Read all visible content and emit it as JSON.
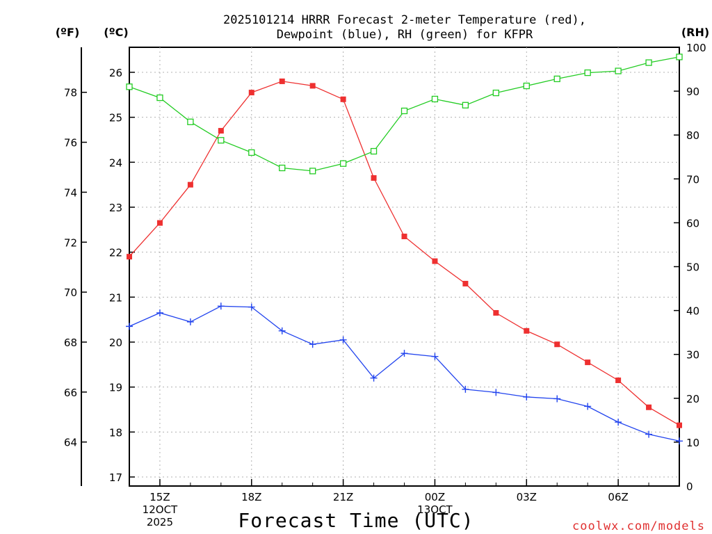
{
  "title_lines": [
    "2025101214 HRRR Forecast 2-meter Temperature (red),",
    "Dewpoint (blue), RH (green) for KFPR"
  ],
  "credit": "coolwx.com/models",
  "chart_data": {
    "type": "line",
    "title": "2025101214 HRRR Forecast 2-meter Temperature (red), Dewpoint (blue), RH (green) for KFPR",
    "xlabel": "Forecast Time (UTC)",
    "hour_range": [
      14,
      32
    ],
    "x_ticks": [
      {
        "hour": 15,
        "lines": [
          "15Z",
          "12OCT",
          "2025"
        ]
      },
      {
        "hour": 18,
        "lines": [
          "18Z"
        ]
      },
      {
        "hour": 21,
        "lines": [
          "21Z"
        ]
      },
      {
        "hour": 24,
        "lines": [
          "00Z",
          "13OCT"
        ]
      },
      {
        "hour": 27,
        "lines": [
          "03Z"
        ]
      },
      {
        "hour": 30,
        "lines": [
          "06Z"
        ]
      }
    ],
    "celsius_axis": {
      "label": "(ºC)",
      "ticks": [
        17,
        18,
        19,
        20,
        21,
        22,
        23,
        24,
        25,
        26
      ],
      "range": [
        16.8,
        26.55
      ]
    },
    "fahrenheit_axis": {
      "label": "(ºF)",
      "ticks": [
        64,
        66,
        68,
        70,
        72,
        74,
        76,
        78
      ]
    },
    "rh_axis": {
      "label": "(RH)",
      "ticks": [
        0,
        10,
        20,
        30,
        40,
        50,
        60,
        70,
        80,
        90,
        100
      ],
      "range": [
        0,
        100
      ]
    },
    "series": [
      {
        "name": "Temperature",
        "color": "#ee3030",
        "marker": "filled-square",
        "axis": "celsius",
        "hours": [
          14,
          15,
          16,
          17,
          18,
          19,
          20,
          21,
          22,
          23,
          24,
          25,
          26,
          27,
          28,
          29,
          30,
          31,
          32
        ],
        "values": [
          21.9,
          22.65,
          23.5,
          24.7,
          25.55,
          25.8,
          25.7,
          25.4,
          23.65,
          22.35,
          21.8,
          21.3,
          20.65,
          20.25,
          19.95,
          19.55,
          19.15,
          18.55,
          18.15
        ]
      },
      {
        "name": "Dewpoint",
        "color": "#2244ee",
        "marker": "plus",
        "axis": "celsius",
        "hours": [
          14,
          15,
          16,
          17,
          18,
          19,
          20,
          21,
          22,
          23,
          24,
          25,
          26,
          27,
          28,
          29,
          30,
          31,
          32
        ],
        "values": [
          20.35,
          20.65,
          20.45,
          20.8,
          20.78,
          20.25,
          19.95,
          20.05,
          19.2,
          19.75,
          19.68,
          18.95,
          18.88,
          18.78,
          18.74,
          18.57,
          18.22,
          17.95,
          17.8
        ]
      },
      {
        "name": "RH",
        "color": "#22cc22",
        "marker": "open-square",
        "axis": "rh",
        "hours": [
          14,
          15,
          16,
          17,
          18,
          19,
          20,
          21,
          22,
          23,
          24,
          25,
          26,
          27,
          28,
          29,
          30,
          31,
          32
        ],
        "values": [
          91,
          88.5,
          83,
          78.8,
          76,
          72.5,
          71.8,
          73.5,
          76.3,
          85.5,
          88.2,
          86.8,
          89.6,
          91.2,
          92.8,
          94.2,
          94.6,
          96.5,
          97.8
        ]
      }
    ]
  }
}
